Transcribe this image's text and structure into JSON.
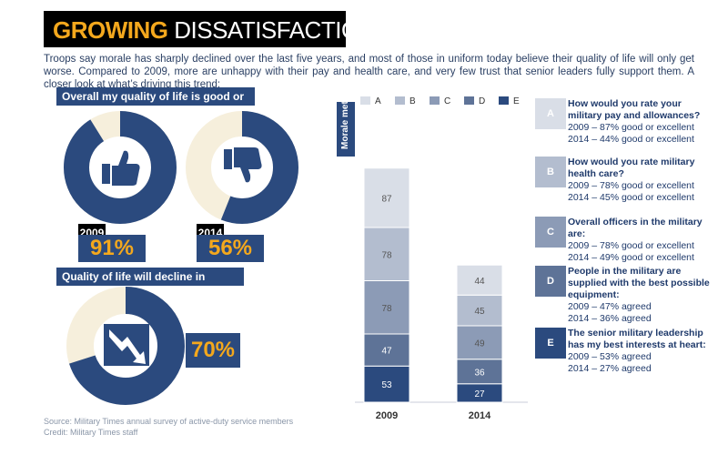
{
  "title": {
    "part1": "GROWING",
    "part2": " DISSATISFACTION"
  },
  "intro": "Troops say morale has sharply declined over the last five years, and most of those in uniform today believe their quality of life will only get worse. Compared to 2009, more are unhappy with their pay and health care, and very few trust that senior leaders fully support them. A closer look at what’s driving this trend:",
  "quality_header": "Overall my quality of life is good or excellent:",
  "decline_header": "Quality of life will decline in coming years:",
  "donuts": [
    {
      "year": "2009",
      "pct_label": "91%",
      "value": 0.91,
      "icon": "thumbs-up-icon"
    },
    {
      "year": "2014",
      "pct_label": "56%",
      "value": 0.56,
      "icon": "thumbs-down-icon"
    },
    {
      "year": "",
      "pct_label": "70%",
      "value": 0.7,
      "icon": "down-trend-arrow-icon"
    }
  ],
  "source": "Source: Military Times annual survey of active-duty service members",
  "credit": "Credit: Military Times staff",
  "morale_label": "Morale meter",
  "colors": {
    "navy": "#2b4a7e",
    "cream": "#f6efdc",
    "gold": "#f4a81d"
  },
  "chart_data": {
    "type": "bar",
    "stacked": true,
    "categories": [
      "2009",
      "2014"
    ],
    "series": [
      {
        "name": "A",
        "values": [
          87,
          44
        ],
        "color": "#d9dee7"
      },
      {
        "name": "B",
        "values": [
          78,
          45
        ],
        "color": "#b3bdcf"
      },
      {
        "name": "C",
        "values": [
          78,
          49
        ],
        "color": "#8c9bb6"
      },
      {
        "name": "D",
        "values": [
          47,
          36
        ],
        "color": "#5e7397"
      },
      {
        "name": "E",
        "values": [
          53,
          27
        ],
        "color": "#2b4a7e"
      }
    ]
  },
  "questions": [
    {
      "letter": "A",
      "q": "How would you rate your military pay and allowances?",
      "l1": "2009 – 87% good or excellent",
      "l2": "2014 – 44% good or excellent"
    },
    {
      "letter": "B",
      "q": "How would you rate military health care?",
      "l1": "2009 – 78% good or excellent",
      "l2": "2014 – 45% good or excellent"
    },
    {
      "letter": "C",
      "q": "Overall officers in the military are:",
      "l1": "2009 – 78% good or excellent",
      "l2": "2014 – 49% good or excellent"
    },
    {
      "letter": "D",
      "q": "People in the military are supplied with the best possible equipment:",
      "l1": "2009 – 47% agreed",
      "l2": "2014 – 36% agreed"
    },
    {
      "letter": "E",
      "q": "The senior military leadership has my best interests at heart:",
      "l1": "2009 – 53% agreed",
      "l2": "2014 – 27% agreed"
    }
  ]
}
